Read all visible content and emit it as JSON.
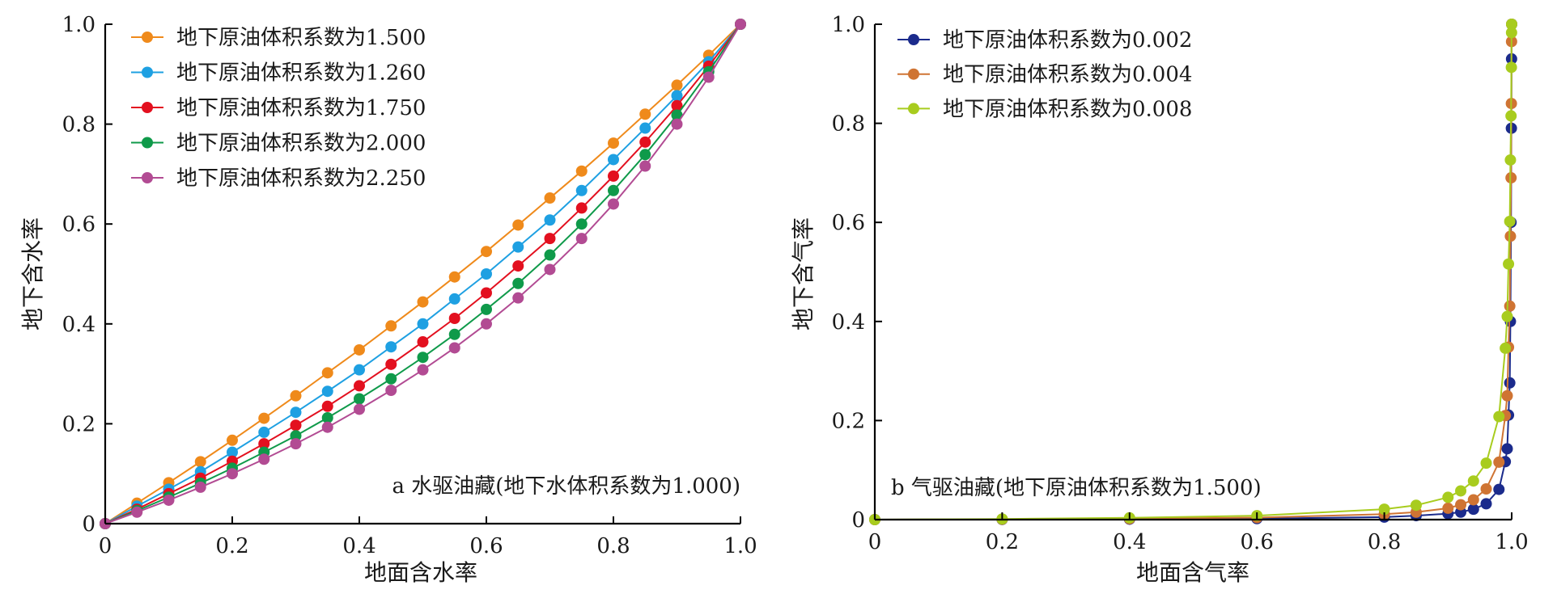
{
  "colors": {
    "orange": "#ef8a1b",
    "sky": "#1ea0e2",
    "red": "#e3101f",
    "green": "#0f9a4a",
    "magenta": "#b24b93",
    "navy": "#1b2b8c",
    "copper": "#cf7433",
    "lime": "#a8cc1e"
  },
  "chart_data": [
    {
      "type": "line",
      "panel_note": "a 水驱油藏(地下水体积系数为1.000)",
      "xlabel": "地面含水率",
      "ylabel": "地下含水率",
      "xlim": [
        0,
        1
      ],
      "ylim": [
        0,
        1
      ],
      "xticks": [
        "0",
        "0.2",
        "0.4",
        "0.6",
        "0.8",
        "1.0"
      ],
      "yticks": [
        "0",
        "0.2",
        "0.4",
        "0.6",
        "0.8",
        "1.0"
      ],
      "legend_position": "top-left",
      "x": [
        0,
        0.05,
        0.1,
        0.15,
        0.2,
        0.25,
        0.3,
        0.35,
        0.4,
        0.45,
        0.5,
        0.55,
        0.6,
        0.65,
        0.7,
        0.75,
        0.8,
        0.85,
        0.9,
        0.95,
        1.0
      ],
      "series": [
        {
          "name": "地下原油体积系数为1.500",
          "color": "#ef8a1b",
          "values": [
            0,
            0.041,
            0.082,
            0.124,
            0.167,
            0.211,
            0.256,
            0.302,
            0.348,
            0.396,
            0.444,
            0.494,
            0.545,
            0.598,
            0.652,
            0.706,
            0.762,
            0.82,
            0.878,
            0.938,
            1.0
          ]
        },
        {
          "name": "地下原油体积系数为1.260",
          "color": "#1ea0e2",
          "values": [
            0,
            0.035,
            0.069,
            0.104,
            0.143,
            0.183,
            0.223,
            0.265,
            0.308,
            0.354,
            0.4,
            0.45,
            0.5,
            0.554,
            0.608,
            0.667,
            0.729,
            0.792,
            0.857,
            0.925,
            1.0
          ]
        },
        {
          "name": "地下原油体积系数为1.750",
          "color": "#e3101f",
          "values": [
            0,
            0.029,
            0.06,
            0.091,
            0.125,
            0.16,
            0.197,
            0.235,
            0.276,
            0.319,
            0.364,
            0.411,
            0.462,
            0.516,
            0.571,
            0.632,
            0.696,
            0.764,
            0.837,
            0.916,
            1.0
          ]
        },
        {
          "name": "地下原油体积系数为2.000",
          "color": "#0f9a4a",
          "values": [
            0,
            0.026,
            0.053,
            0.081,
            0.111,
            0.143,
            0.176,
            0.212,
            0.25,
            0.29,
            0.333,
            0.379,
            0.429,
            0.481,
            0.538,
            0.6,
            0.667,
            0.739,
            0.818,
            0.905,
            1.0
          ]
        },
        {
          "name": "地下原油体积系数为2.250",
          "color": "#b24b93",
          "values": [
            0,
            0.023,
            0.047,
            0.073,
            0.1,
            0.129,
            0.16,
            0.193,
            0.229,
            0.267,
            0.308,
            0.352,
            0.4,
            0.452,
            0.509,
            0.571,
            0.64,
            0.716,
            0.8,
            0.894,
            1.0
          ]
        }
      ]
    },
    {
      "type": "line",
      "panel_note": "b 气驱油藏(地下原油体积系数为1.500)",
      "xlabel": "地面含气率",
      "ylabel": "地下含气率",
      "xlim": [
        0,
        1
      ],
      "ylim": [
        0,
        1
      ],
      "xticks": [
        "0",
        "0.2",
        "0.4",
        "0.6",
        "0.8",
        "1.0"
      ],
      "yticks": [
        "0",
        "0.2",
        "0.4",
        "0.6",
        "0.8",
        "1.0"
      ],
      "legend_position": "top-left",
      "x": [
        0,
        0.2,
        0.4,
        0.6,
        0.8,
        0.85,
        0.9,
        0.92,
        0.94,
        0.96,
        0.98,
        0.99,
        0.993,
        0.995,
        0.997,
        0.998,
        0.999,
        0.9995,
        0.9998,
        1.0
      ],
      "series": [
        {
          "name": "地下原油体积系数为0.002",
          "color": "#1b2b8c",
          "values": [
            0,
            0.0003,
            0.0009,
            0.002,
            0.005,
            0.008,
            0.012,
            0.015,
            0.021,
            0.032,
            0.061,
            0.117,
            0.143,
            0.211,
            0.276,
            0.4,
            0.6,
            0.79,
            0.93,
            1.0
          ]
        },
        {
          "name": "地下原油体积系数为0.004",
          "color": "#cf7433",
          "values": [
            0,
            0.0007,
            0.0018,
            0.004,
            0.011,
            0.015,
            0.023,
            0.03,
            0.04,
            0.062,
            0.116,
            0.21,
            0.25,
            0.348,
            0.431,
            0.572,
            0.69,
            0.84,
            0.965,
            1.0
          ]
        },
        {
          "name": "地下原油体积系数为0.008",
          "color": "#a8cc1e",
          "values": [
            0,
            0.0013,
            0.0036,
            0.008,
            0.021,
            0.029,
            0.045,
            0.058,
            0.078,
            0.114,
            0.208,
            0.346,
            0.41,
            0.516,
            0.602,
            0.726,
            0.815,
            0.913,
            0.983,
            1.0
          ]
        }
      ]
    }
  ]
}
